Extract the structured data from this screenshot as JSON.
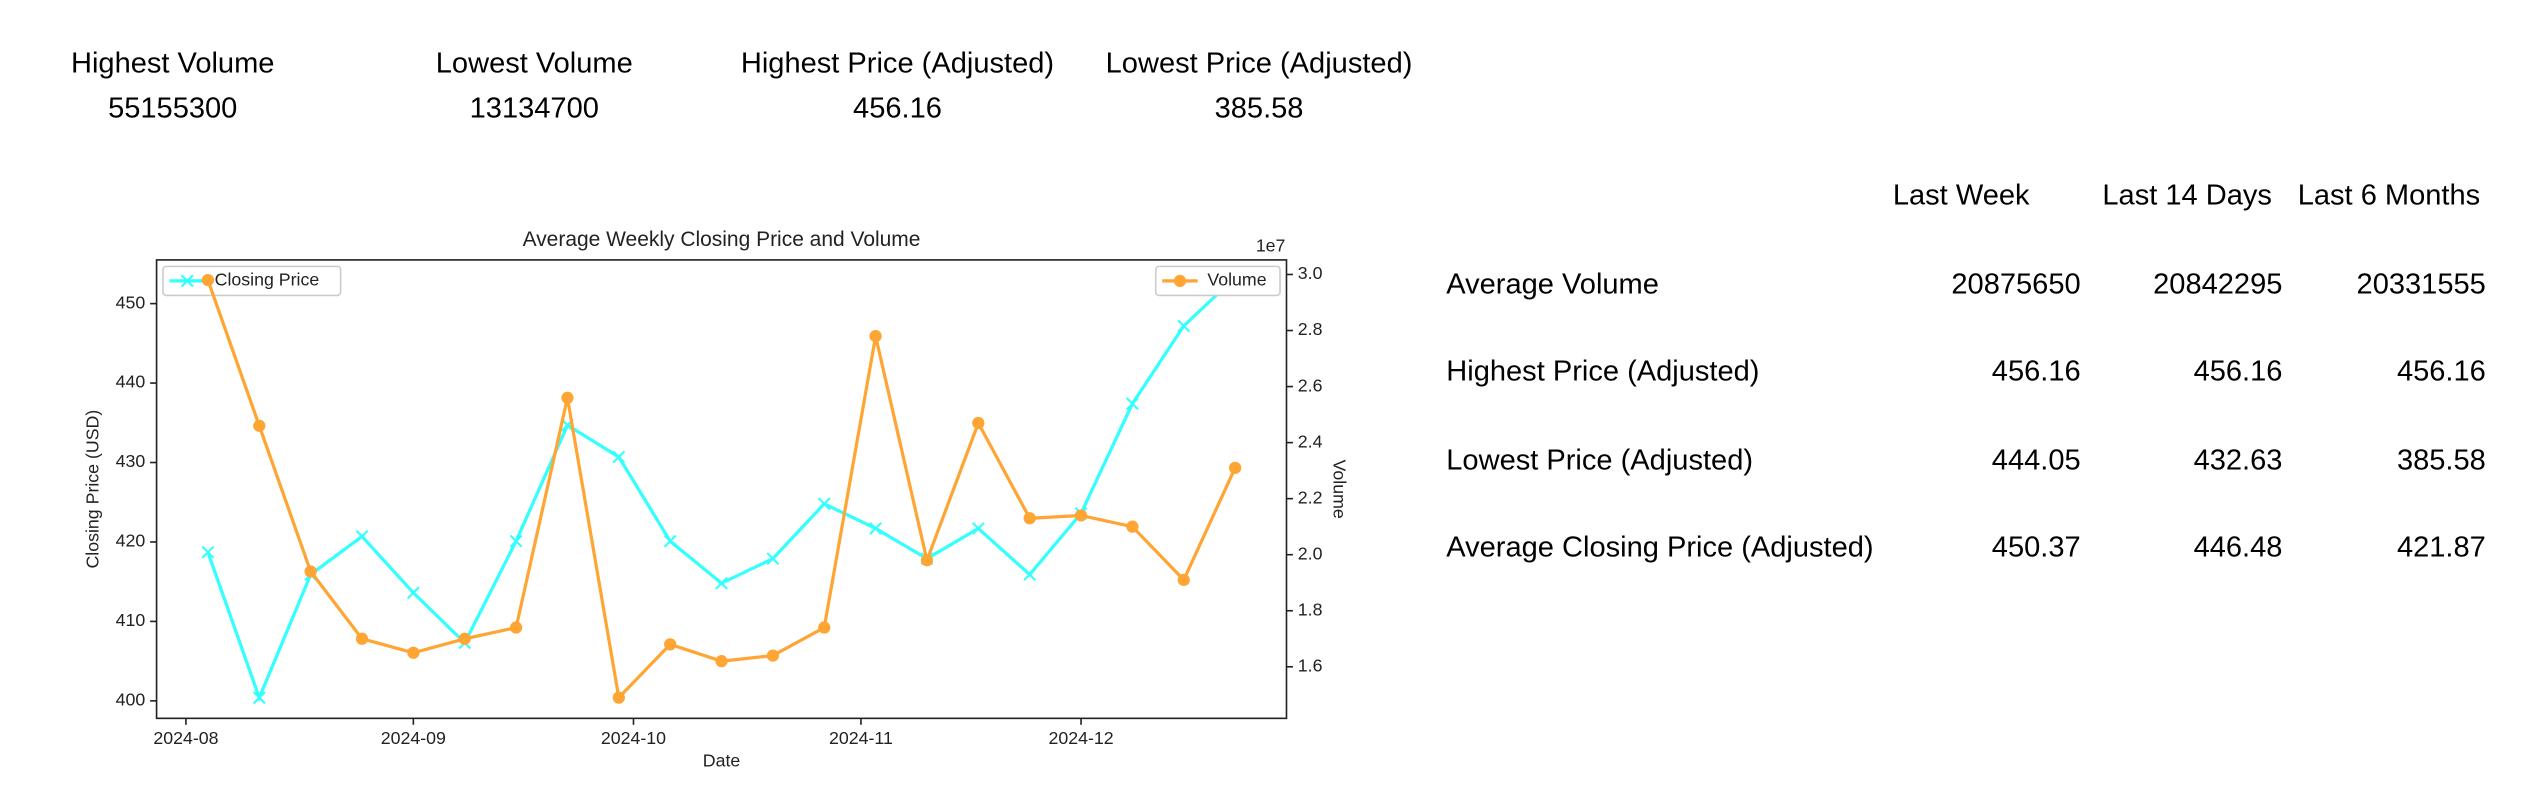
{
  "stats": [
    {
      "label": "Highest Volume",
      "value": 55155300
    },
    {
      "label": "Lowest Volume",
      "value": 13134700
    },
    {
      "label": "Highest Price (Adjusted)",
      "value": 456.16
    },
    {
      "label": "Lowest Price (Adjusted)",
      "value": 385.58
    }
  ],
  "chart_data": {
    "type": "line",
    "title": "Average Weekly Closing Price and Volume",
    "xlabel": "Date",
    "ylabel": "Closing Price (USD)",
    "y2label": "Volume",
    "y2_offset": "1e7",
    "x": [
      217,
      224,
      231,
      238,
      245,
      252,
      259,
      266,
      273,
      280,
      287,
      294,
      301,
      308,
      315,
      322,
      329,
      336,
      343,
      350,
      357
    ],
    "xlim": [
      210,
      364
    ],
    "xticks": [
      {
        "value": 214,
        "label": "2024-08"
      },
      {
        "value": 245,
        "label": "2024-09"
      },
      {
        "value": 275,
        "label": "2024-10"
      },
      {
        "value": 306,
        "label": "2024-11"
      },
      {
        "value": 336,
        "label": "2024-12"
      }
    ],
    "ylim": [
      397.8,
      455.5
    ],
    "yticks": [
      400,
      410,
      420,
      430,
      440,
      450
    ],
    "y2lim": [
      1.416,
      3.052
    ],
    "y2ticks": [
      {
        "value": 1.6,
        "label": "1.6"
      },
      {
        "value": 1.8,
        "label": "1.8"
      },
      {
        "value": 2,
        "label": "2.0"
      },
      {
        "value": 2.2,
        "label": "2.2"
      },
      {
        "value": 2.4,
        "label": "2.4"
      },
      {
        "value": 2.6,
        "label": "2.6"
      },
      {
        "value": 2.8,
        "label": "2.8"
      },
      {
        "value": 3,
        "label": "3.0"
      }
    ],
    "series": [
      {
        "name": "Closing Price",
        "color": "#33ffff",
        "marker": "x",
        "legend": "upper left",
        "values": [
          418.7,
          400.4,
          415.9,
          420.7,
          413.6,
          407.3,
          420.1,
          434.7,
          430.7,
          420.1,
          414.8,
          417.9,
          424.8,
          421.7,
          417.9,
          421.7,
          415.9,
          423.6,
          437.4,
          447.2,
          453.3
        ]
      },
      {
        "name": "Volume",
        "color": "#ffa534",
        "marker": "o",
        "legend": "upper right",
        "axis": "y2",
        "values": [
          2.98,
          2.46,
          1.94,
          1.7,
          1.65,
          1.7,
          1.74,
          2.56,
          1.49,
          1.68,
          1.62,
          1.64,
          1.74,
          2.78,
          1.98,
          2.47,
          2.13,
          2.14,
          2.1,
          1.91,
          2.31
        ]
      }
    ]
  },
  "table": {
    "columns": [
      "Last Week",
      "Last 14 Days",
      "Last 6 Months"
    ],
    "rows": [
      [
        "Average Volume",
        20875650,
        20842295,
        20331555
      ],
      [
        "Highest Price (Adjusted)",
        456.16,
        456.16,
        456.16
      ],
      [
        "Lowest Price (Adjusted)",
        444.05,
        432.63,
        385.58
      ],
      [
        "Average Closing Price (Adjusted)",
        450.37,
        446.48,
        421.87
      ]
    ]
  }
}
